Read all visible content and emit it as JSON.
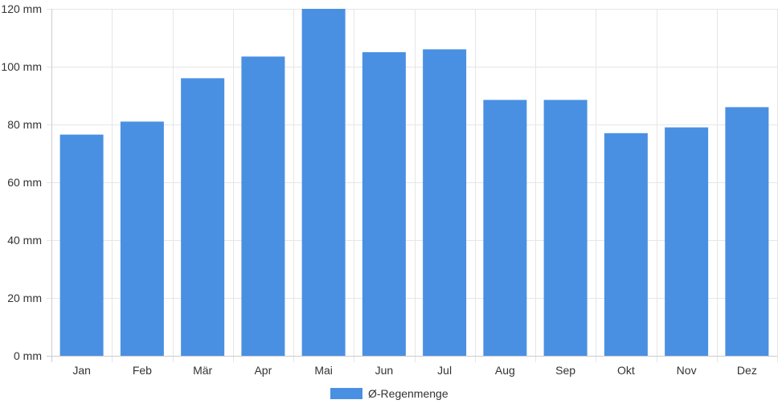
{
  "chart_data": {
    "type": "bar",
    "categories": [
      "Jan",
      "Feb",
      "Mär",
      "Apr",
      "Mai",
      "Jun",
      "Jul",
      "Aug",
      "Sep",
      "Okt",
      "Nov",
      "Dez"
    ],
    "series": [
      {
        "name": "Ø-Regenmenge",
        "color": "#4a90e2",
        "values": [
          76.5,
          81,
          96,
          103.5,
          120,
          105,
          106,
          88.5,
          88.5,
          77,
          79,
          86
        ]
      }
    ],
    "ylim": [
      0,
      120
    ],
    "yticks": [
      0,
      20,
      40,
      60,
      80,
      100,
      120
    ],
    "ytick_labels": [
      "0 mm",
      "20 mm",
      "40 mm",
      "60 mm",
      "80 mm",
      "100 mm",
      "120 mm"
    ],
    "grid": true,
    "legend_position": "bottom"
  }
}
